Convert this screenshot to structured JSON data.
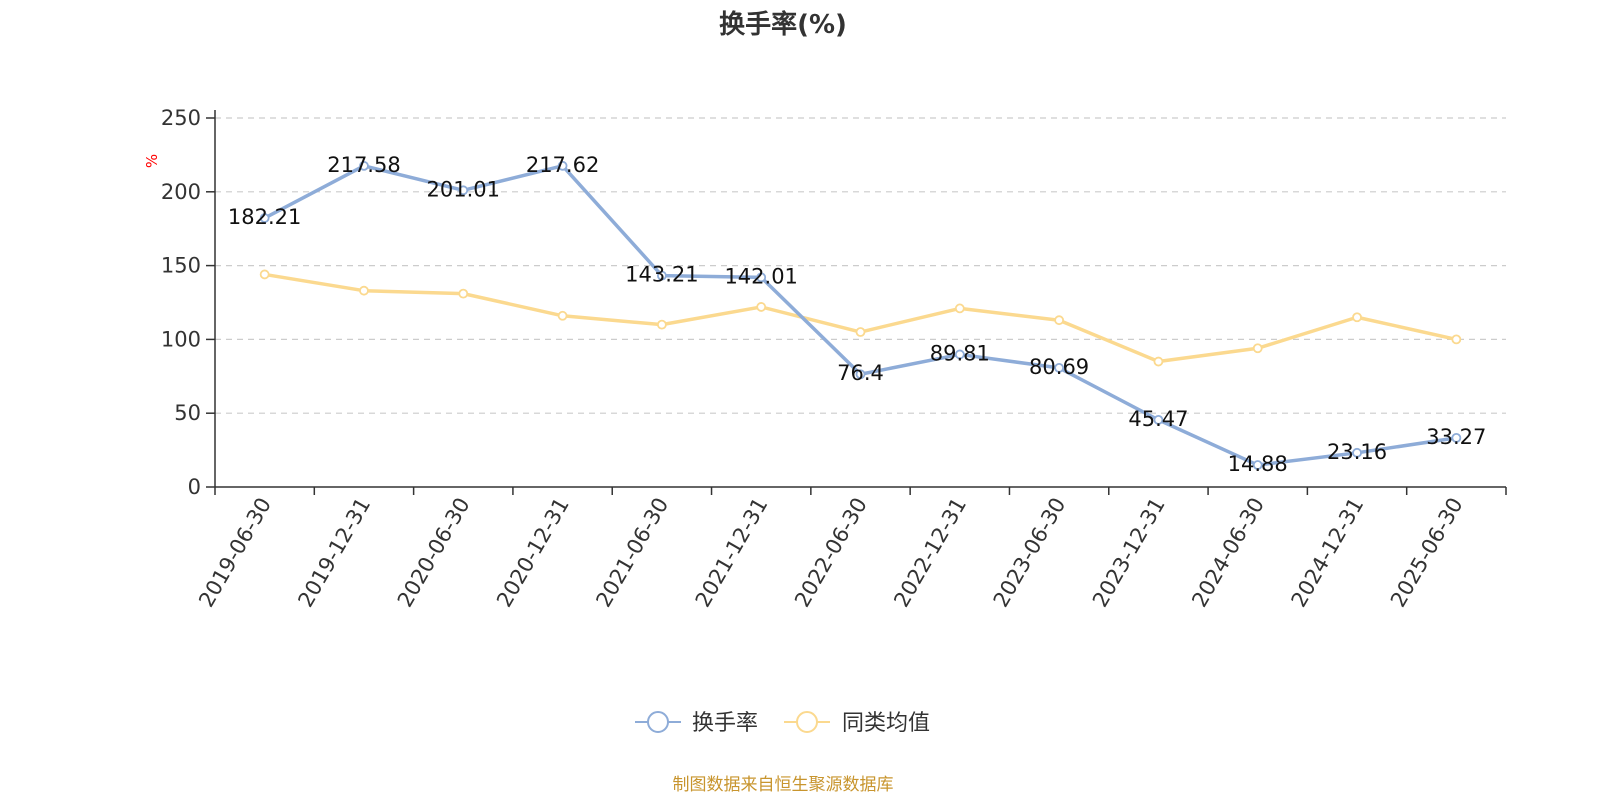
{
  "chart_data": {
    "type": "line",
    "title": "换手率(%)",
    "ylabel": "%",
    "ylim": [
      0,
      250
    ],
    "yticks": [
      0,
      50,
      100,
      150,
      200,
      250
    ],
    "grid": true,
    "legend_position": "bottom-center",
    "categories": [
      "2019-06-30",
      "2019-12-31",
      "2020-06-30",
      "2020-12-31",
      "2021-06-30",
      "2021-12-31",
      "2022-06-30",
      "2022-12-31",
      "2023-06-30",
      "2023-12-31",
      "2024-06-30",
      "2024-12-31",
      "2025-06-30"
    ],
    "series": [
      {
        "name": "换手率",
        "color": "#8eacd8",
        "show_labels": true,
        "values": [
          182.21,
          217.58,
          201.01,
          217.62,
          143.21,
          142.01,
          76.4,
          89.81,
          80.69,
          45.47,
          14.88,
          23.16,
          33.27
        ]
      },
      {
        "name": "同类均值",
        "color": "#fbd98f",
        "show_labels": false,
        "values": [
          144,
          133,
          131,
          116,
          110,
          122,
          105,
          121,
          113,
          85,
          94,
          115,
          100
        ]
      }
    ]
  },
  "source": "制图数据来自恒生聚源数据库",
  "colors": {
    "title": "#333333",
    "axis": "#333333",
    "grid": "#cccccc",
    "unit": "#ff0000",
    "source": "#c8952e"
  }
}
